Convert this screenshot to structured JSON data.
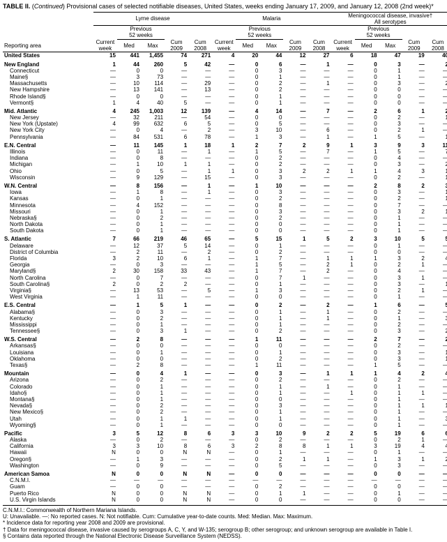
{
  "caption_lead": "TABLE II.",
  "caption_cont": " (",
  "caption_italic": "Continued",
  "caption_rest": ") Provisional cases of selected notifiable diseases, United States, weeks ending January 17, 2009, and January 12, 2008 (2nd week)*",
  "diseases": [
    "Lyme disease",
    "Malaria",
    "Meningococcal disease, invasive†\nAll serotypes"
  ],
  "col_labels": {
    "area": "Reporting area",
    "current": "Current\nweek",
    "med": "Med",
    "max": "Max",
    "cum09": "Cum\n2009",
    "cum08": "Cum\n2008",
    "prev": "Previous\n52 weeks"
  },
  "rows": [
    {
      "t": "region",
      "a": "United States",
      "d": [
        "15",
        "441",
        "1,455",
        "74",
        "271",
        "4",
        "20",
        "44",
        "12",
        "27",
        "6",
        "18",
        "47",
        "19",
        "40"
      ]
    },
    {
      "t": "region",
      "a": "New England",
      "d": [
        "1",
        "44",
        "260",
        "5",
        "42",
        "—",
        "0",
        "6",
        "—",
        "1",
        "—",
        "0",
        "3",
        "—",
        "2"
      ]
    },
    {
      "t": "sub",
      "a": "Connecticut",
      "d": [
        "—",
        "0",
        "0",
        "—",
        "—",
        "—",
        "0",
        "3",
        "—",
        "—",
        "—",
        "0",
        "1",
        "—",
        "—"
      ]
    },
    {
      "t": "sub",
      "a": "Maine§",
      "d": [
        "—",
        "3",
        "73",
        "—",
        "—",
        "—",
        "0",
        "1",
        "—",
        "—",
        "—",
        "0",
        "1",
        "—",
        "—"
      ]
    },
    {
      "t": "sub",
      "a": "Massachusetts",
      "d": [
        "—",
        "10",
        "114",
        "—",
        "29",
        "—",
        "0",
        "2",
        "—",
        "1",
        "—",
        "0",
        "3",
        "—",
        "2"
      ]
    },
    {
      "t": "sub",
      "a": "New Hampshire",
      "d": [
        "—",
        "13",
        "141",
        "—",
        "13",
        "—",
        "0",
        "2",
        "—",
        "—",
        "—",
        "0",
        "0",
        "—",
        "—"
      ]
    },
    {
      "t": "sub",
      "a": "Rhode Island§",
      "d": [
        "—",
        "0",
        "0",
        "—",
        "—",
        "—",
        "0",
        "1",
        "—",
        "—",
        "—",
        "0",
        "0",
        "—",
        "—"
      ]
    },
    {
      "t": "sub",
      "a": "Vermont§",
      "d": [
        "1",
        "4",
        "40",
        "5",
        "—",
        "—",
        "0",
        "1",
        "—",
        "—",
        "—",
        "0",
        "0",
        "—",
        "—"
      ]
    },
    {
      "t": "region",
      "a": "Mid. Atlantic",
      "d": [
        "4",
        "245",
        "1,003",
        "12",
        "139",
        "—",
        "4",
        "14",
        "—",
        "7",
        "—",
        "2",
        "6",
        "1",
        "2"
      ]
    },
    {
      "t": "sub",
      "a": "New Jersey",
      "d": [
        "—",
        "32",
        "211",
        "—",
        "54",
        "—",
        "0",
        "0",
        "—",
        "—",
        "—",
        "0",
        "2",
        "—",
        "1"
      ]
    },
    {
      "t": "sub",
      "a": "New York (Upstate)",
      "d": [
        "4",
        "99",
        "632",
        "6",
        "5",
        "—",
        "0",
        "5",
        "—",
        "—",
        "—",
        "0",
        "3",
        "—",
        "—"
      ]
    },
    {
      "t": "sub",
      "a": "New York City",
      "d": [
        "—",
        "0",
        "4",
        "—",
        "2",
        "—",
        "3",
        "10",
        "—",
        "6",
        "—",
        "0",
        "2",
        "1",
        "—"
      ]
    },
    {
      "t": "sub",
      "a": "Pennsylvania",
      "d": [
        "—",
        "84",
        "531",
        "6",
        "78",
        "—",
        "1",
        "3",
        "—",
        "1",
        "—",
        "1",
        "5",
        "—",
        "1"
      ]
    },
    {
      "t": "region",
      "a": "E.N. Central",
      "d": [
        "—",
        "11",
        "145",
        "1",
        "18",
        "1",
        "2",
        "7",
        "2",
        "9",
        "1",
        "3",
        "9",
        "3",
        "11"
      ]
    },
    {
      "t": "sub",
      "a": "Illinois",
      "d": [
        "—",
        "0",
        "11",
        "—",
        "1",
        "—",
        "1",
        "5",
        "—",
        "7",
        "—",
        "1",
        "5",
        "—",
        "7"
      ]
    },
    {
      "t": "sub",
      "a": "Indiana",
      "d": [
        "—",
        "0",
        "8",
        "—",
        "—",
        "—",
        "0",
        "2",
        "—",
        "—",
        "—",
        "0",
        "4",
        "—",
        "—"
      ]
    },
    {
      "t": "sub",
      "a": "Michigan",
      "d": [
        "—",
        "1",
        "10",
        "1",
        "1",
        "—",
        "0",
        "2",
        "—",
        "—",
        "—",
        "0",
        "3",
        "—",
        "2"
      ]
    },
    {
      "t": "sub",
      "a": "Ohio",
      "d": [
        "—",
        "0",
        "5",
        "—",
        "1",
        "1",
        "0",
        "3",
        "2",
        "2",
        "1",
        "1",
        "4",
        "3",
        "1"
      ]
    },
    {
      "t": "sub",
      "a": "Wisconsin",
      "d": [
        "—",
        "9",
        "129",
        "—",
        "15",
        "—",
        "0",
        "3",
        "—",
        "—",
        "—",
        "0",
        "2",
        "—",
        "1"
      ]
    },
    {
      "t": "region",
      "a": "W.N. Central",
      "d": [
        "—",
        "8",
        "156",
        "—",
        "1",
        "—",
        "1",
        "10",
        "—",
        "—",
        "—",
        "2",
        "8",
        "2",
        "3"
      ]
    },
    {
      "t": "sub",
      "a": "Iowa",
      "d": [
        "—",
        "1",
        "8",
        "—",
        "1",
        "—",
        "0",
        "3",
        "—",
        "—",
        "—",
        "0",
        "3",
        "—",
        "1"
      ]
    },
    {
      "t": "sub",
      "a": "Kansas",
      "d": [
        "—",
        "0",
        "1",
        "—",
        "—",
        "—",
        "0",
        "2",
        "—",
        "—",
        "—",
        "0",
        "2",
        "—",
        "1"
      ]
    },
    {
      "t": "sub",
      "a": "Minnesota",
      "d": [
        "—",
        "4",
        "152",
        "—",
        "—",
        "—",
        "0",
        "8",
        "—",
        "—",
        "—",
        "0",
        "7",
        "—",
        "—"
      ]
    },
    {
      "t": "sub",
      "a": "Missouri",
      "d": [
        "—",
        "0",
        "1",
        "—",
        "—",
        "—",
        "0",
        "3",
        "—",
        "—",
        "—",
        "0",
        "3",
        "2",
        "1"
      ]
    },
    {
      "t": "sub",
      "a": "Nebraska§",
      "d": [
        "—",
        "0",
        "2",
        "—",
        "—",
        "—",
        "0",
        "2",
        "—",
        "—",
        "—",
        "0",
        "1",
        "—",
        "—"
      ]
    },
    {
      "t": "sub",
      "a": "North Dakota",
      "d": [
        "—",
        "0",
        "1",
        "—",
        "—",
        "—",
        "0",
        "0",
        "—",
        "—",
        "—",
        "0",
        "1",
        "—",
        "—"
      ]
    },
    {
      "t": "sub",
      "a": "South Dakota",
      "d": [
        "—",
        "0",
        "1",
        "—",
        "—",
        "—",
        "0",
        "0",
        "—",
        "—",
        "—",
        "0",
        "1",
        "—",
        "—"
      ]
    },
    {
      "t": "region",
      "a": "S. Atlantic",
      "d": [
        "7",
        "66",
        "219",
        "46",
        "65",
        "—",
        "5",
        "15",
        "1",
        "5",
        "2",
        "3",
        "10",
        "5",
        "5"
      ]
    },
    {
      "t": "sub",
      "a": "Delaware",
      "d": [
        "—",
        "12",
        "37",
        "5",
        "14",
        "—",
        "0",
        "1",
        "—",
        "—",
        "—",
        "0",
        "1",
        "—",
        "—"
      ]
    },
    {
      "t": "sub",
      "a": "District of Columbia",
      "d": [
        "—",
        "2",
        "11",
        "—",
        "2",
        "—",
        "0",
        "2",
        "—",
        "—",
        "—",
        "0",
        "0",
        "—",
        "—"
      ]
    },
    {
      "t": "sub",
      "a": "Florida",
      "d": [
        "3",
        "2",
        "10",
        "6",
        "1",
        "—",
        "1",
        "7",
        "—",
        "1",
        "1",
        "1",
        "3",
        "2",
        "4"
      ]
    },
    {
      "t": "sub",
      "a": "Georgia",
      "d": [
        "—",
        "0",
        "3",
        "—",
        "—",
        "—",
        "1",
        "5",
        "—",
        "2",
        "1",
        "0",
        "2",
        "1",
        "—"
      ]
    },
    {
      "t": "sub",
      "a": "Maryland§",
      "d": [
        "2",
        "30",
        "158",
        "33",
        "43",
        "—",
        "1",
        "7",
        "—",
        "2",
        "—",
        "0",
        "4",
        "—",
        "—"
      ]
    },
    {
      "t": "sub",
      "a": "North Carolina",
      "d": [
        "—",
        "0",
        "7",
        "—",
        "—",
        "—",
        "0",
        "7",
        "1",
        "—",
        "—",
        "0",
        "3",
        "1",
        "—"
      ]
    },
    {
      "t": "sub",
      "a": "South Carolina§",
      "d": [
        "2",
        "0",
        "2",
        "2",
        "—",
        "—",
        "0",
        "1",
        "—",
        "—",
        "—",
        "0",
        "3",
        "—",
        "1"
      ]
    },
    {
      "t": "sub",
      "a": "Virginia§",
      "d": [
        "—",
        "13",
        "53",
        "—",
        "5",
        "—",
        "1",
        "3",
        "—",
        "—",
        "—",
        "0",
        "2",
        "1",
        "—"
      ]
    },
    {
      "t": "sub",
      "a": "West Virginia",
      "d": [
        "—",
        "1",
        "11",
        "—",
        "—",
        "—",
        "0",
        "0",
        "—",
        "—",
        "—",
        "0",
        "1",
        "—",
        "—"
      ]
    },
    {
      "t": "region",
      "a": "E.S. Central",
      "d": [
        "—",
        "1",
        "5",
        "1",
        "—",
        "—",
        "0",
        "2",
        "—",
        "2",
        "—",
        "1",
        "6",
        "—",
        "5"
      ]
    },
    {
      "t": "sub",
      "a": "Alabama§",
      "d": [
        "—",
        "0",
        "3",
        "—",
        "—",
        "—",
        "0",
        "1",
        "—",
        "1",
        "—",
        "0",
        "2",
        "—",
        "—"
      ]
    },
    {
      "t": "sub",
      "a": "Kentucky",
      "d": [
        "—",
        "0",
        "2",
        "—",
        "—",
        "—",
        "0",
        "1",
        "—",
        "1",
        "—",
        "0",
        "1",
        "—",
        "3"
      ]
    },
    {
      "t": "sub",
      "a": "Mississippi",
      "d": [
        "—",
        "0",
        "1",
        "—",
        "—",
        "—",
        "0",
        "1",
        "—",
        "—",
        "—",
        "0",
        "2",
        "—",
        "—"
      ]
    },
    {
      "t": "sub",
      "a": "Tennessee§",
      "d": [
        "—",
        "0",
        "3",
        "1",
        "—",
        "—",
        "0",
        "2",
        "—",
        "—",
        "—",
        "0",
        "3",
        "—",
        "2"
      ]
    },
    {
      "t": "region",
      "a": "W.S. Central",
      "d": [
        "—",
        "2",
        "8",
        "—",
        "—",
        "—",
        "1",
        "11",
        "—",
        "—",
        "—",
        "2",
        "7",
        "—",
        "2"
      ]
    },
    {
      "t": "sub",
      "a": "Arkansas§",
      "d": [
        "—",
        "0",
        "0",
        "—",
        "—",
        "—",
        "0",
        "0",
        "—",
        "—",
        "—",
        "0",
        "2",
        "—",
        "—"
      ]
    },
    {
      "t": "sub",
      "a": "Louisiana",
      "d": [
        "—",
        "0",
        "1",
        "—",
        "—",
        "—",
        "0",
        "1",
        "—",
        "—",
        "—",
        "0",
        "3",
        "—",
        "1"
      ]
    },
    {
      "t": "sub",
      "a": "Oklahoma",
      "d": [
        "—",
        "0",
        "0",
        "—",
        "—",
        "—",
        "0",
        "2",
        "—",
        "—",
        "—",
        "0",
        "3",
        "—",
        "1"
      ]
    },
    {
      "t": "sub",
      "a": "Texas§",
      "d": [
        "—",
        "2",
        "8",
        "—",
        "—",
        "—",
        "1",
        "11",
        "—",
        "—",
        "—",
        "1",
        "5",
        "—",
        "—"
      ]
    },
    {
      "t": "region",
      "a": "Mountain",
      "d": [
        "—",
        "0",
        "4",
        "1",
        "—",
        "—",
        "0",
        "3",
        "—",
        "1",
        "1",
        "1",
        "4",
        "2",
        "4"
      ]
    },
    {
      "t": "sub",
      "a": "Arizona",
      "d": [
        "—",
        "0",
        "2",
        "—",
        "—",
        "—",
        "0",
        "2",
        "—",
        "—",
        "—",
        "0",
        "2",
        "—",
        "—"
      ]
    },
    {
      "t": "sub",
      "a": "Colorado",
      "d": [
        "—",
        "0",
        "1",
        "—",
        "—",
        "—",
        "0",
        "1",
        "—",
        "1",
        "—",
        "0",
        "1",
        "—",
        "—"
      ]
    },
    {
      "t": "sub",
      "a": "Idaho§",
      "d": [
        "—",
        "0",
        "1",
        "—",
        "—",
        "—",
        "0",
        "1",
        "—",
        "—",
        "1",
        "0",
        "1",
        "1",
        "—"
      ]
    },
    {
      "t": "sub",
      "a": "Montana§",
      "d": [
        "—",
        "0",
        "1",
        "—",
        "—",
        "—",
        "0",
        "0",
        "—",
        "—",
        "—",
        "0",
        "1",
        "—",
        "—"
      ]
    },
    {
      "t": "sub",
      "a": "Nevada§",
      "d": [
        "—",
        "0",
        "2",
        "—",
        "—",
        "—",
        "0",
        "3",
        "—",
        "—",
        "—",
        "0",
        "1",
        "1",
        "1"
      ]
    },
    {
      "t": "sub",
      "a": "New Mexico§",
      "d": [
        "—",
        "0",
        "2",
        "—",
        "—",
        "—",
        "0",
        "1",
        "—",
        "—",
        "—",
        "0",
        "1",
        "—",
        "—"
      ]
    },
    {
      "t": "sub",
      "a": "Utah",
      "d": [
        "—",
        "0",
        "1",
        "1",
        "—",
        "—",
        "0",
        "1",
        "—",
        "—",
        "—",
        "0",
        "1",
        "—",
        "3"
      ]
    },
    {
      "t": "sub",
      "a": "Wyoming§",
      "d": [
        "—",
        "0",
        "1",
        "—",
        "—",
        "—",
        "0",
        "0",
        "—",
        "—",
        "—",
        "0",
        "1",
        "—",
        "—"
      ]
    },
    {
      "t": "region",
      "a": "Pacific",
      "d": [
        "3",
        "5",
        "12",
        "8",
        "6",
        "3",
        "3",
        "10",
        "9",
        "2",
        "2",
        "5",
        "19",
        "6",
        "6"
      ]
    },
    {
      "t": "sub",
      "a": "Alaska",
      "d": [
        "—",
        "0",
        "2",
        "—",
        "—",
        "—",
        "0",
        "2",
        "—",
        "—",
        "—",
        "0",
        "2",
        "1",
        "—"
      ]
    },
    {
      "t": "sub",
      "a": "California",
      "d": [
        "3",
        "3",
        "10",
        "8",
        "6",
        "3",
        "2",
        "8",
        "8",
        "1",
        "1",
        "3",
        "19",
        "4",
        "4"
      ]
    },
    {
      "t": "sub",
      "a": "Hawaii",
      "d": [
        "N",
        "0",
        "0",
        "N",
        "N",
        "—",
        "0",
        "1",
        "—",
        "—",
        "—",
        "0",
        "1",
        "—",
        "—"
      ]
    },
    {
      "t": "sub",
      "a": "Oregon§",
      "d": [
        "—",
        "1",
        "3",
        "—",
        "—",
        "—",
        "0",
        "2",
        "1",
        "1",
        "—",
        "1",
        "3",
        "1",
        "2"
      ]
    },
    {
      "t": "sub",
      "a": "Washington",
      "d": [
        "—",
        "0",
        "9",
        "—",
        "—",
        "—",
        "0",
        "5",
        "—",
        "—",
        "—",
        "0",
        "3",
        "—",
        "—"
      ]
    },
    {
      "t": "region",
      "a": "American Samoa",
      "d": [
        "N",
        "0",
        "0",
        "N",
        "N",
        "—",
        "0",
        "0",
        "—",
        "—",
        "—",
        "0",
        "0",
        "—",
        "—"
      ]
    },
    {
      "t": "sub",
      "a": "C.N.M.I.",
      "d": [
        "—",
        "—",
        "—",
        "—",
        "—",
        "—",
        "—",
        "—",
        "—",
        "—",
        "—",
        "—",
        "—",
        "—",
        "—"
      ]
    },
    {
      "t": "sub",
      "a": "Guam",
      "d": [
        "—",
        "0",
        "0",
        "—",
        "—",
        "—",
        "0",
        "2",
        "—",
        "—",
        "—",
        "0",
        "0",
        "—",
        "—"
      ]
    },
    {
      "t": "sub",
      "a": "Puerto Rico",
      "d": [
        "N",
        "0",
        "0",
        "N",
        "N",
        "—",
        "0",
        "1",
        "1",
        "—",
        "—",
        "0",
        "1",
        "—",
        "—"
      ]
    },
    {
      "t": "sub",
      "a": "U.S. Virgin Islands",
      "d": [
        "N",
        "0",
        "0",
        "N",
        "N",
        "—",
        "0",
        "0",
        "—",
        "—",
        "—",
        "0",
        "0",
        "—",
        "—"
      ]
    }
  ],
  "footnotes": [
    "C.N.M.I.: Commonwealth of Northern Mariana Islands.",
    "U: Unavailable.    —: No reported cases.    N: Not notifiable.    Cum: Cumulative year-to-date counts.    Med: Median.    Max: Maximum.",
    "* Incidence data for reporting year 2008 and 2009 are provisional.",
    "† Data for meningococcal disease, invasive caused by serogroups A, C, Y, and W-135; serogroup B; other serogroup; and unknown serogroup are available in Table I.",
    "§ Contains data reported through the National Electronic Disease Surveillance System (NEDSS)."
  ],
  "style": {
    "border_color": "#000000",
    "bg": "#ffffff",
    "font": "Arial",
    "base_fontsize": 8
  }
}
